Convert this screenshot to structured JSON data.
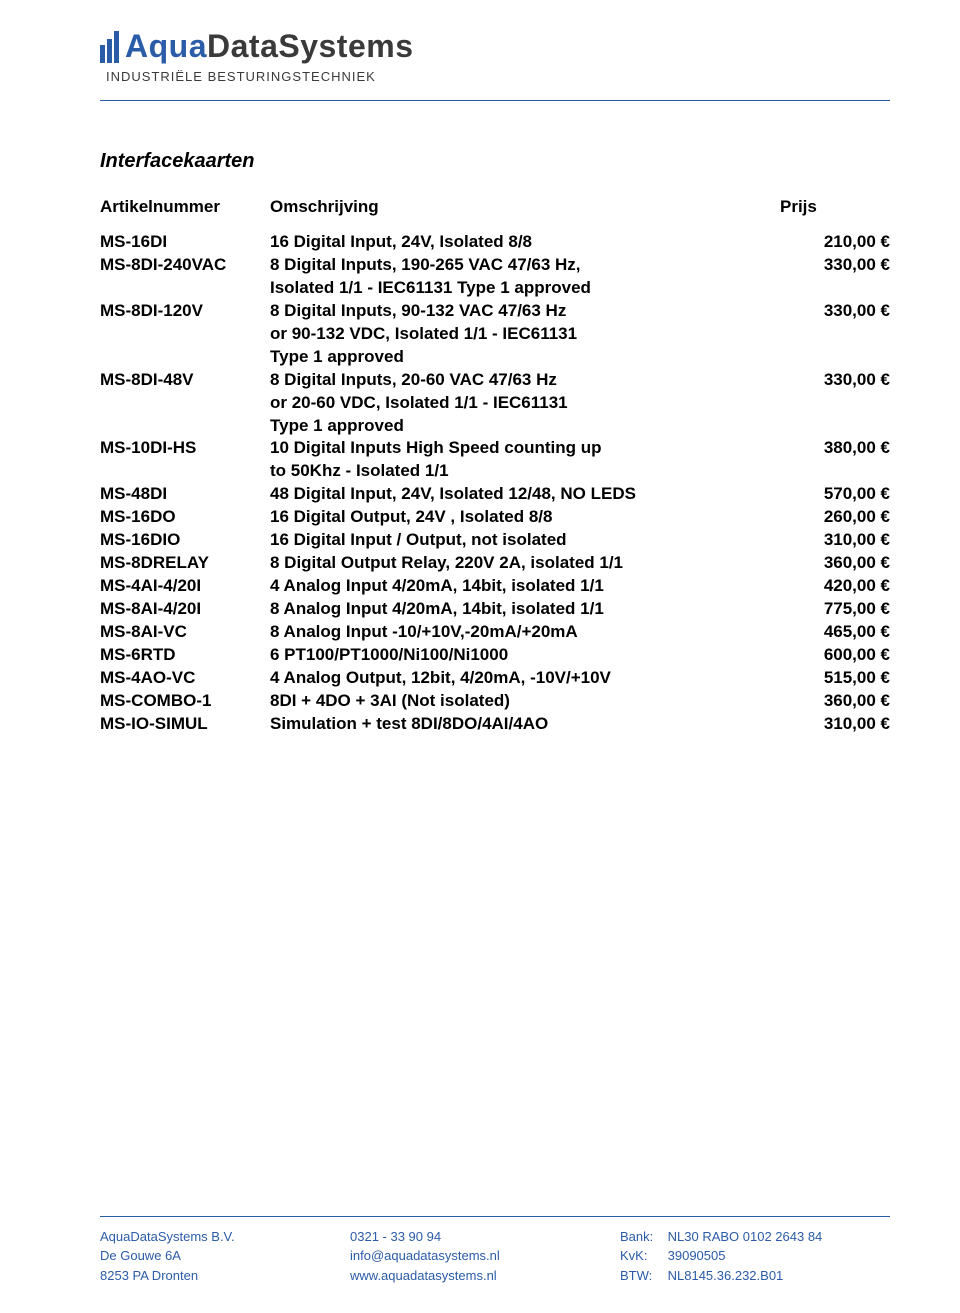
{
  "colors": {
    "brand_blue": "#2b5ca8",
    "text_dark": "#3a3a3a",
    "body_text": "#000000",
    "background": "#ffffff"
  },
  "typography": {
    "body_font": "Arial",
    "logo_fontsize_pt": 24,
    "tagline_fontsize_pt": 10,
    "section_title_fontsize_pt": 15,
    "table_fontsize_pt": 13,
    "footer_fontsize_pt": 10
  },
  "header": {
    "logo_aqua": "Aqua",
    "logo_data": "DataSystems",
    "tagline": "INDUSTRIËLE BESTURINGSTECHNIEK"
  },
  "section_title": "Interfacekaarten",
  "columns": {
    "artikel": "Artikelnummer",
    "omschrijving": "Omschrijving",
    "prijs": "Prijs"
  },
  "rows": [
    {
      "art": "MS-16DI",
      "desc": "16 Digital Input, 24V, Isolated 8/8",
      "extra": [],
      "price": "210,00 €"
    },
    {
      "art": "MS-8DI-240VAC",
      "desc": "8 Digital Inputs, 190-265 VAC 47/63 Hz,",
      "extra": [
        "Isolated 1/1 - IEC61131 Type 1 approved"
      ],
      "price": "330,00 €"
    },
    {
      "art": "MS-8DI-120V",
      "desc": "8 Digital Inputs, 90-132 VAC 47/63 Hz",
      "extra": [
        "or 90-132 VDC, Isolated 1/1 - IEC61131",
        "Type 1 approved"
      ],
      "price": "330,00 €"
    },
    {
      "art": "MS-8DI-48V",
      "desc": "8 Digital Inputs, 20-60 VAC 47/63 Hz",
      "extra": [
        "or 20-60 VDC, Isolated 1/1 - IEC61131",
        "Type 1 approved"
      ],
      "price": "330,00 €"
    },
    {
      "art": "MS-10DI-HS",
      "desc": "10 Digital Inputs High Speed counting up",
      "extra": [
        "to 50Khz - Isolated 1/1"
      ],
      "price": "380,00 €"
    },
    {
      "art": "MS-48DI",
      "desc": "48 Digital Input, 24V, Isolated 12/48, NO LEDS",
      "extra": [],
      "price": "570,00 €"
    },
    {
      "art": "MS-16DO",
      "desc": "16 Digital Output, 24V , Isolated 8/8",
      "extra": [],
      "price": "260,00 €"
    },
    {
      "art": "MS-16DIO",
      "desc": "16 Digital Input / Output, not isolated",
      "extra": [],
      "price": "310,00 €"
    },
    {
      "art": "MS-8DRELAY",
      "desc": "8 Digital Output Relay, 220V 2A, isolated 1/1",
      "extra": [],
      "price": "360,00 €"
    },
    {
      "art": "MS-4AI-4/20I",
      "desc": "4 Analog Input 4/20mA, 14bit, isolated 1/1",
      "extra": [],
      "price": "420,00 €"
    },
    {
      "art": "MS-8AI-4/20I",
      "desc": "8 Analog Input 4/20mA, 14bit, isolated 1/1",
      "extra": [],
      "price": "775,00 €"
    },
    {
      "art": "MS-8AI-VC",
      "desc": "8 Analog Input -10/+10V,-20mA/+20mA",
      "extra": [],
      "price": "465,00 €"
    },
    {
      "art": "MS-6RTD",
      "desc": "6 PT100/PT1000/Ni100/Ni1000",
      "extra": [],
      "price": "600,00 €"
    },
    {
      "art": "MS-4AO-VC",
      "desc": "4 Analog Output, 12bit, 4/20mA, -10V/+10V",
      "extra": [],
      "price": "515,00 €"
    },
    {
      "art": "MS-COMBO-1",
      "desc": "8DI + 4DO + 3AI (Not isolated)",
      "extra": [],
      "price": "360,00 €"
    },
    {
      "art": "MS-IO-SIMUL",
      "desc": "Simulation + test 8DI/8DO/4AI/4AO",
      "extra": [],
      "price": "310,00 €"
    }
  ],
  "footer": {
    "col1": {
      "l1": "AquaDataSystems B.V.",
      "l2": "De Gouwe 6A",
      "l3": "8253 PA  Dronten"
    },
    "col2": {
      "l1": "0321 - 33 90 94",
      "l2": "info@aquadatasystems.nl",
      "l3": "www.aquadatasystems.nl"
    },
    "col3": {
      "bank_label": "Bank:",
      "bank": "NL30 RABO 0102 2643 84",
      "kvk_label": "KvK:",
      "kvk": "39090505",
      "btw_label": "BTW:",
      "btw": "NL8145.36.232.B01"
    }
  }
}
